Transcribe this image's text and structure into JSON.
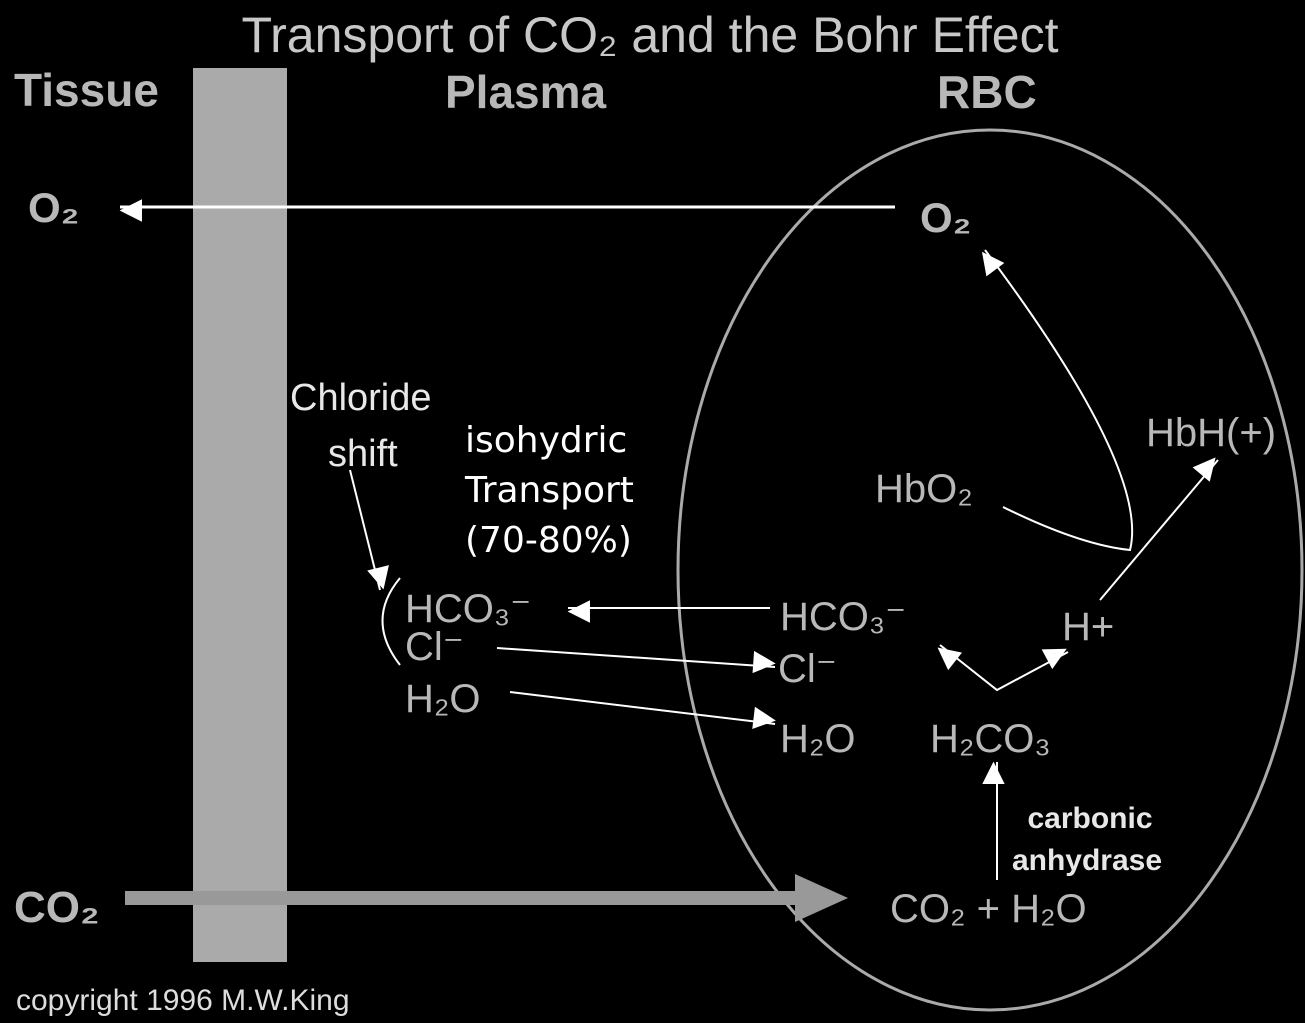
{
  "title": "Transport of CO₂ and the Bohr Effect",
  "columns": {
    "tissue": "Tissue",
    "plasma": "Plasma",
    "rbc": "RBC"
  },
  "tissue": {
    "o2": "O₂",
    "co2": "CO₂"
  },
  "plasma": {
    "chloride_shift": [
      "Chloride",
      "shift"
    ],
    "isohydric": [
      "isohydric",
      "Transport",
      "(70-80%)"
    ],
    "hco3": "HCO₃⁻",
    "cl": "Cl⁻",
    "h2o": "H₂O"
  },
  "rbc": {
    "o2": "O₂",
    "hbh": "HbH(+)",
    "hbo2": "HbO₂",
    "hco3": "HCO₃⁻",
    "h_plus": "H+",
    "cl": "Cl⁻",
    "h2o": "H₂O",
    "h2co3": "H₂CO₃",
    "carbonic_anhydrase": [
      "carbonic",
      "anhydrase"
    ],
    "co2_h2o": "CO₂ + H₂O"
  },
  "copyright": "copyright 1996 M.W.King"
}
